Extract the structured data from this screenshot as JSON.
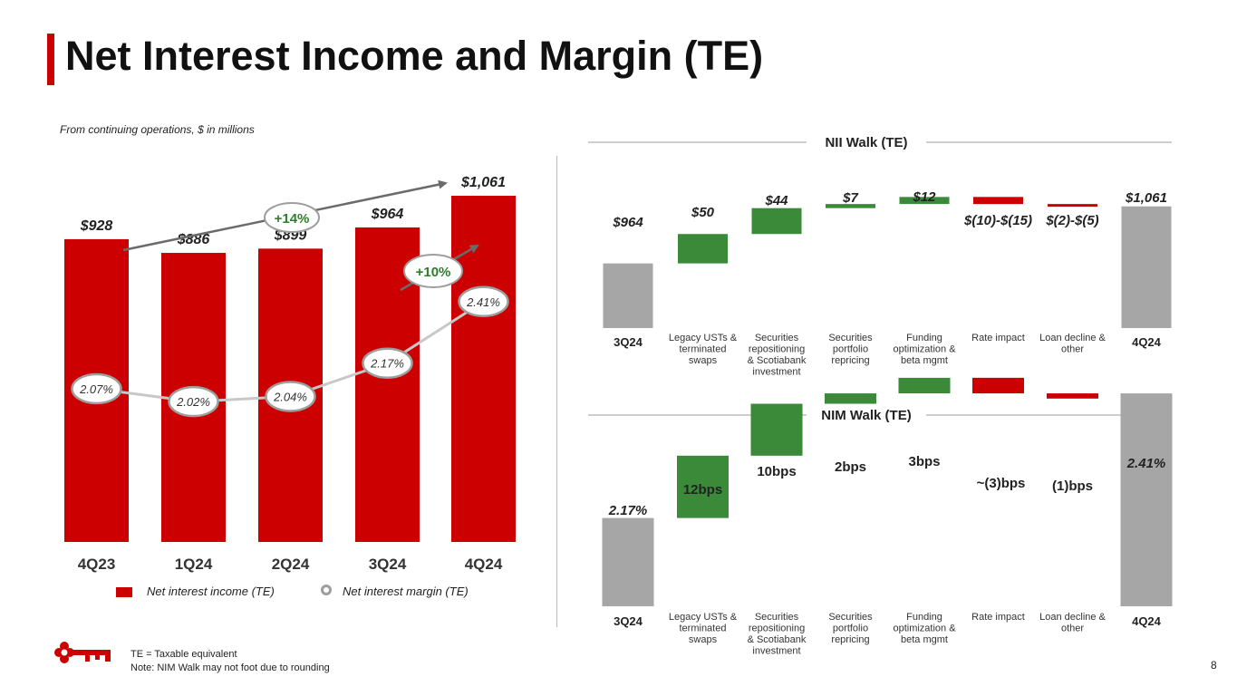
{
  "page": {
    "title": "Net Interest Income and Margin (TE)",
    "subtitle": "From continuing operations, $ in millions",
    "footnotes": [
      "TE = Taxable equivalent",
      "Note: NIM Walk may not foot due to rounding"
    ],
    "page_number": "8",
    "colors": {
      "accent": "#cc0000",
      "bar": "#cc0000",
      "increase": "#3a8a3a",
      "decrease": "#cc0000",
      "total": "#a6a6a6",
      "nim_line": "#c8c8c8"
    }
  },
  "legend": {
    "nii": "Net interest income (TE)",
    "nim": "Net interest margin (TE)"
  },
  "chart_data": [
    {
      "type": "bar",
      "categories": [
        "4Q23",
        "1Q24",
        "2Q24",
        "3Q24",
        "4Q24"
      ],
      "series": [
        {
          "name": "Net interest income (TE)",
          "values": [
            928,
            886,
            899,
            964,
            1061
          ],
          "labels": [
            "$928",
            "$886",
            "$899",
            "$964",
            "$1,061"
          ]
        },
        {
          "name": "Net interest margin (TE)",
          "type": "line",
          "values": [
            2.07,
            2.02,
            2.04,
            2.17,
            2.41
          ],
          "labels": [
            "2.07%",
            "2.02%",
            "2.04%",
            "2.17%",
            "2.41%"
          ]
        }
      ],
      "annotations": [
        {
          "text": "+14%",
          "from": "4Q23",
          "to": "4Q24",
          "series": "Net interest income (TE)"
        },
        {
          "text": "+10%",
          "from": "3Q24",
          "to": "4Q24",
          "series": "Net interest margin (TE)"
        }
      ]
    },
    {
      "type": "waterfall",
      "title": "NII Walk (TE)",
      "categories": [
        "3Q24",
        "Legacy USTs & terminated swaps",
        "Securities repositioning & Scotiabank investment",
        "Securities portfolio repricing",
        "Funding optimization & beta mgmt",
        "Rate impact",
        "Loan decline & other",
        "4Q24"
      ],
      "values": [
        964,
        50,
        44,
        7,
        12,
        -12,
        -2,
        1061
      ],
      "kinds": [
        "total",
        "increase",
        "increase",
        "increase",
        "increase",
        "decrease",
        "decrease",
        "total"
      ],
      "labels": [
        "$964",
        "$50",
        "$44",
        "$7",
        "$12",
        "$(10)-$(15)",
        "$(2)-$(5)",
        "$1,061"
      ]
    },
    {
      "type": "waterfall",
      "title": "NIM Walk (TE)",
      "categories": [
        "3Q24",
        "Legacy USTs & terminated swaps",
        "Securities repositioning & Scotiabank investment",
        "Securities portfolio repricing",
        "Funding optimization & beta mgmt",
        "Rate impact",
        "Loan decline & other",
        "4Q24"
      ],
      "values": [
        2.17,
        0.12,
        0.1,
        0.02,
        0.03,
        -0.03,
        -0.01,
        2.41
      ],
      "kinds": [
        "total",
        "increase",
        "increase",
        "increase",
        "increase",
        "decrease",
        "decrease",
        "total"
      ],
      "labels": [
        "2.17%",
        "12bps",
        "10bps",
        "2bps",
        "3bps",
        "~(3)bps",
        "(1)bps",
        "2.41%"
      ]
    }
  ]
}
